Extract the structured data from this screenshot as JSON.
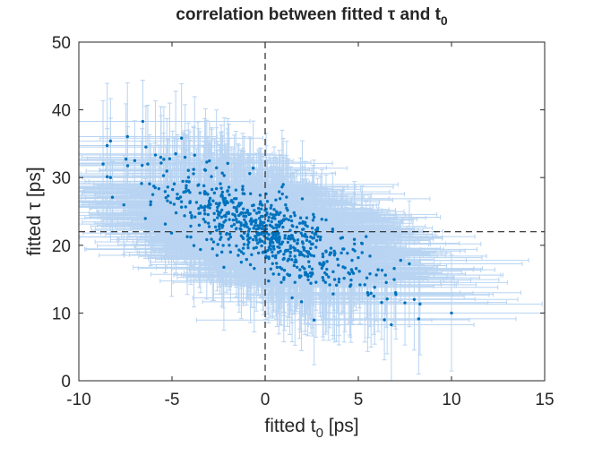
{
  "chart_data": {
    "type": "scatter",
    "title": "correlation between fitted τ and t",
    "title_subscript": "0",
    "xlabel": "fitted t",
    "xlabel_subscript": "0",
    "xlabel_suffix": " [ps]",
    "ylabel": "fitted τ [ps]",
    "xlim": [
      -10,
      15
    ],
    "ylim": [
      0,
      50
    ],
    "xticks": [
      -10,
      -5,
      0,
      5,
      10,
      15
    ],
    "yticks": [
      0,
      10,
      20,
      30,
      40,
      50
    ],
    "xtick_labels": [
      "-10",
      "-5",
      "0",
      "5",
      "10",
      "15"
    ],
    "ytick_labels": [
      "0",
      "10",
      "20",
      "30",
      "40",
      "50"
    ],
    "reference_lines": {
      "vertical_x": 0,
      "horizontal_y": 22
    },
    "n_points": 700,
    "trend": {
      "center_x": 0,
      "center_y": 22,
      "slope": -1.1,
      "x_sd": 2.8,
      "y_residual_sd": 2.8
    },
    "error_bars": {
      "x_halfwidth_typical": 5.5,
      "y_halfwidth_typical": 7
    },
    "highlighted_points": [
      {
        "x": -8.3,
        "y": 35.4
      },
      {
        "x": -8.7,
        "y": 32.0
      },
      {
        "x": -8.3,
        "y": 30.0
      },
      {
        "x": -7.0,
        "y": 32.5
      },
      {
        "x": -6.4,
        "y": 34.5
      },
      {
        "x": -6.3,
        "y": 32.0
      },
      {
        "x": -6.6,
        "y": 31.8
      },
      {
        "x": -5.6,
        "y": 33.0
      },
      {
        "x": -4.8,
        "y": 33.5
      },
      {
        "x": -4.3,
        "y": 33.0
      },
      {
        "x": -5.9,
        "y": 28.5
      },
      {
        "x": 10.0,
        "y": 10.0
      },
      {
        "x": 6.4,
        "y": 9.0
      },
      {
        "x": 7.5,
        "y": 11.5
      },
      {
        "x": 7.0,
        "y": 13.0
      },
      {
        "x": 8.0,
        "y": 12.0
      },
      {
        "x": 5.5,
        "y": 13.0
      },
      {
        "x": 6.5,
        "y": 14.5
      }
    ],
    "colors": {
      "marker": "#0072BD",
      "error_bar": "#B8D4F2",
      "reference_line": "#262626",
      "axes": "#262626"
    }
  }
}
